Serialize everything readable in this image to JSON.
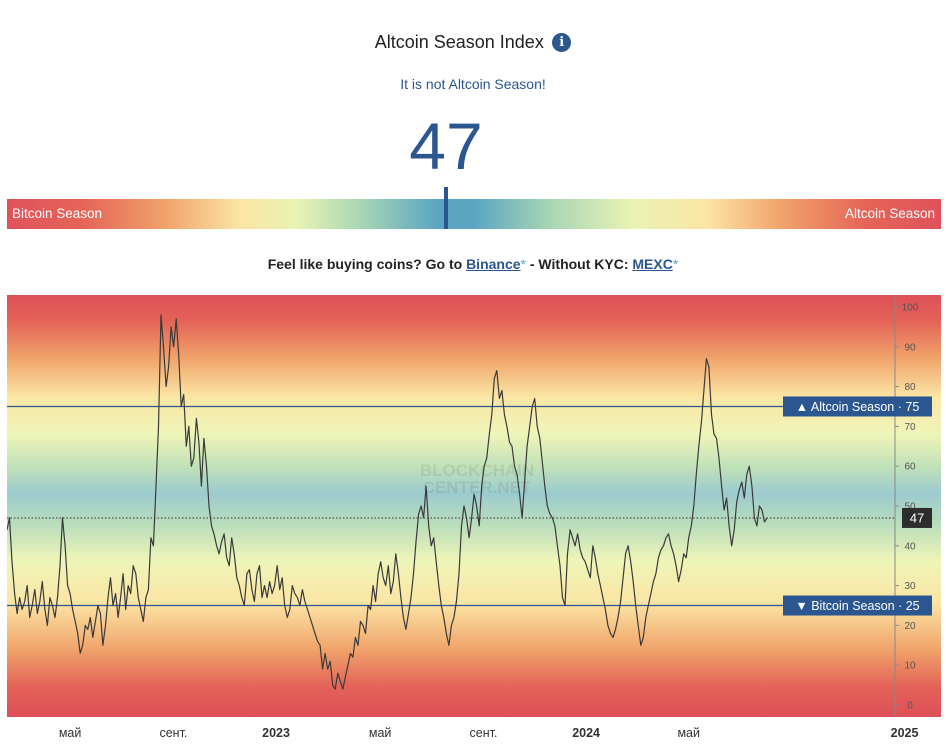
{
  "header": {
    "title": "Altcoin Season Index",
    "info_icon": "info-icon",
    "status": "It is not Altcoin Season!",
    "value": "47"
  },
  "gauge": {
    "left_label": "Bitcoin Season",
    "right_label": "Altcoin Season",
    "value": 47
  },
  "promo": {
    "text_before": "Feel like buying coins? Go to ",
    "link1": "Binance",
    "star1": "*",
    "text_mid": " - Without KYC: ",
    "link2": "MEXC",
    "star2": "*"
  },
  "chart_data": {
    "type": "line",
    "ylim": [
      -3,
      103
    ],
    "y_ticks": [
      0,
      10,
      20,
      30,
      40,
      50,
      60,
      70,
      80,
      90,
      100
    ],
    "x_tick_labels": [
      {
        "label": "май",
        "t": 0.083
      },
      {
        "label": "сент.",
        "t": 0.219
      },
      {
        "label": "2023",
        "t": 0.354
      },
      {
        "label": "май",
        "t": 0.491
      },
      {
        "label": "сент.",
        "t": 0.627
      },
      {
        "label": "2024",
        "t": 0.762
      },
      {
        "label": "май",
        "t": 0.897
      },
      {
        "label": "2025",
        "t": 1.181
      }
    ],
    "reference_lines": [
      {
        "name": "Altcoin Season",
        "value": 75,
        "arrow": "▲"
      },
      {
        "name": "Bitcoin Season",
        "value": 25,
        "arrow": "▼"
      }
    ],
    "current_value": 47,
    "watermark": [
      "BLOCKCHAIN",
      "CENTER.NET"
    ],
    "series": [
      {
        "name": "Altcoin Season Index",
        "values": [
          44,
          47,
          36,
          28,
          23,
          27,
          24,
          26,
          30,
          22,
          25,
          29,
          23,
          26,
          31,
          24,
          20,
          27,
          25,
          22,
          27,
          35,
          47,
          40,
          30,
          28,
          24,
          21,
          18,
          13,
          15,
          20,
          19,
          22,
          17,
          21,
          25,
          23,
          15,
          20,
          27,
          32,
          25,
          28,
          22,
          27,
          33,
          24,
          30,
          28,
          35,
          33,
          27,
          24,
          21,
          27,
          29,
          42,
          40,
          55,
          70,
          98,
          90,
          80,
          85,
          95,
          90,
          97,
          88,
          75,
          78,
          65,
          70,
          60,
          62,
          72,
          66,
          55,
          67,
          60,
          50,
          45,
          43,
          40,
          38,
          41,
          43,
          37,
          35,
          42,
          38,
          32,
          30,
          27,
          25,
          33,
          34,
          29,
          26,
          33,
          35,
          27,
          30,
          27,
          31,
          28,
          30,
          35,
          29,
          32,
          25,
          22,
          24,
          30,
          28,
          27,
          25,
          29,
          26,
          24,
          22,
          20,
          18,
          16,
          15,
          9,
          13,
          9,
          11,
          5,
          4,
          8,
          6,
          4,
          7,
          10,
          13,
          12,
          17,
          15,
          21,
          20,
          18,
          25,
          24,
          30,
          26,
          33,
          36,
          32,
          30,
          35,
          28,
          31,
          38,
          33,
          27,
          22,
          19,
          23,
          27,
          33,
          41,
          48,
          50,
          47,
          55,
          45,
          40,
          42,
          36,
          30,
          25,
          22,
          18,
          15,
          20,
          22,
          26,
          33,
          45,
          50,
          47,
          42,
          47,
          53,
          50,
          45,
          55,
          60,
          62,
          68,
          73,
          82,
          84,
          77,
          79,
          73,
          70,
          66,
          65,
          60,
          58,
          53,
          47,
          56,
          65,
          70,
          75,
          77,
          70,
          67,
          61,
          55,
          50,
          48,
          47,
          45,
          40,
          35,
          27,
          25,
          38,
          44,
          42,
          40,
          43,
          39,
          37,
          36,
          34,
          32,
          40,
          37,
          33,
          30,
          27,
          24,
          20,
          18,
          17,
          19,
          22,
          26,
          32,
          38,
          40,
          36,
          31,
          25,
          20,
          15,
          17,
          22,
          25,
          28,
          31,
          33,
          37,
          39,
          40,
          42,
          43,
          40,
          38,
          35,
          31,
          34,
          38,
          37,
          42,
          45,
          50,
          58,
          65,
          71,
          79,
          87,
          85,
          73,
          68,
          67,
          62,
          55,
          49,
          52,
          45,
          40,
          44,
          51,
          54,
          56,
          52,
          58,
          60,
          55,
          47,
          45,
          50,
          49,
          46,
          47
        ]
      }
    ]
  }
}
